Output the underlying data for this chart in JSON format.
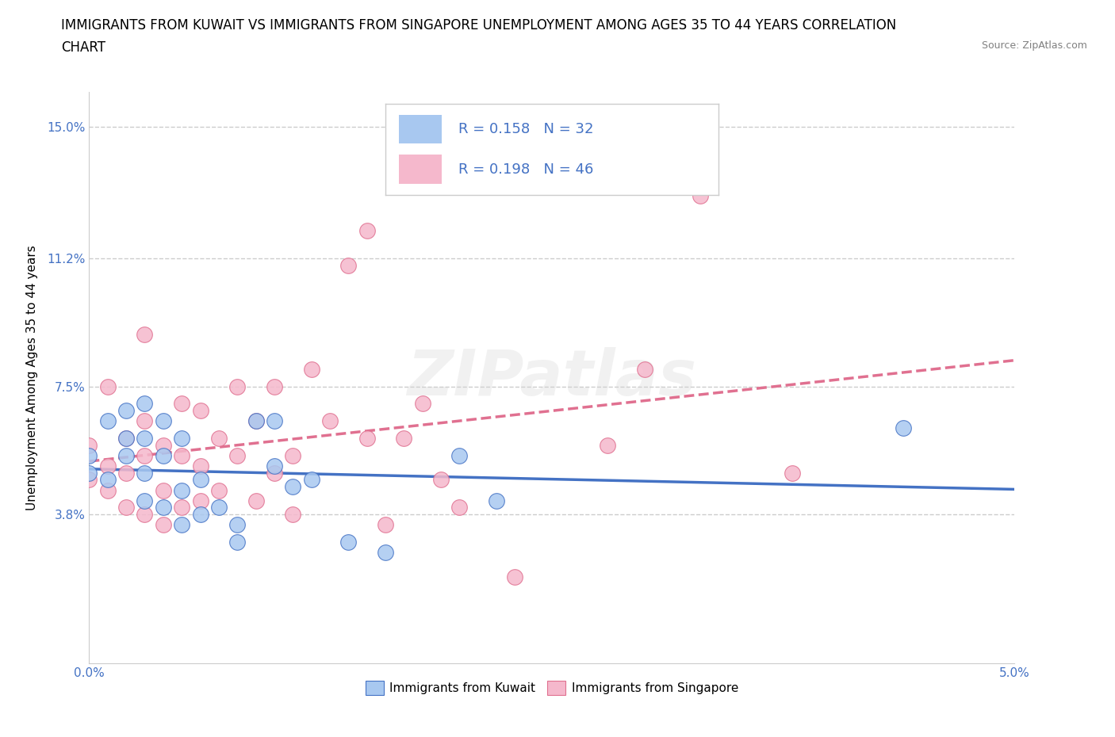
{
  "title_line1": "IMMIGRANTS FROM KUWAIT VS IMMIGRANTS FROM SINGAPORE UNEMPLOYMENT AMONG AGES 35 TO 44 YEARS CORRELATION",
  "title_line2": "CHART",
  "source": "Source: ZipAtlas.com",
  "ylabel": "Unemployment Among Ages 35 to 44 years",
  "xlim": [
    0.0,
    0.05
  ],
  "ylim": [
    -0.005,
    0.16
  ],
  "xticks": [
    0.0,
    0.01,
    0.02,
    0.03,
    0.04,
    0.05
  ],
  "xticklabels": [
    "0.0%",
    "",
    "",
    "",
    "",
    "5.0%"
  ],
  "yticks": [
    0.038,
    0.075,
    0.112,
    0.15
  ],
  "yticklabels": [
    "3.8%",
    "7.5%",
    "11.2%",
    "15.0%"
  ],
  "grid_yticks": [
    0.038,
    0.075,
    0.112,
    0.15
  ],
  "kuwait_color": "#A8C8F0",
  "singapore_color": "#F5B8CC",
  "kuwait_line_color": "#4472C4",
  "singapore_line_color": "#E07090",
  "legend_text_color": "#4472C4",
  "legend_R_kuwait": "R = 0.158",
  "legend_N_kuwait": "N = 32",
  "legend_R_singapore": "R = 0.198",
  "legend_N_singapore": "N = 46",
  "watermark": "ZIPatlas",
  "kuwait_scatter_x": [
    0.0,
    0.0,
    0.001,
    0.001,
    0.002,
    0.002,
    0.002,
    0.003,
    0.003,
    0.003,
    0.003,
    0.004,
    0.004,
    0.004,
    0.005,
    0.005,
    0.005,
    0.006,
    0.006,
    0.007,
    0.008,
    0.008,
    0.009,
    0.01,
    0.01,
    0.011,
    0.012,
    0.014,
    0.016,
    0.02,
    0.022,
    0.044
  ],
  "kuwait_scatter_y": [
    0.05,
    0.055,
    0.048,
    0.065,
    0.055,
    0.06,
    0.068,
    0.042,
    0.05,
    0.06,
    0.07,
    0.04,
    0.055,
    0.065,
    0.035,
    0.045,
    0.06,
    0.038,
    0.048,
    0.04,
    0.03,
    0.035,
    0.065,
    0.052,
    0.065,
    0.046,
    0.048,
    0.03,
    0.027,
    0.055,
    0.042,
    0.063
  ],
  "singapore_scatter_x": [
    0.0,
    0.0,
    0.001,
    0.001,
    0.001,
    0.002,
    0.002,
    0.002,
    0.003,
    0.003,
    0.003,
    0.003,
    0.004,
    0.004,
    0.004,
    0.005,
    0.005,
    0.005,
    0.006,
    0.006,
    0.006,
    0.007,
    0.007,
    0.008,
    0.008,
    0.009,
    0.009,
    0.01,
    0.01,
    0.011,
    0.011,
    0.012,
    0.013,
    0.014,
    0.015,
    0.015,
    0.016,
    0.017,
    0.018,
    0.019,
    0.02,
    0.023,
    0.028,
    0.03,
    0.033,
    0.038
  ],
  "singapore_scatter_y": [
    0.048,
    0.058,
    0.045,
    0.052,
    0.075,
    0.04,
    0.05,
    0.06,
    0.038,
    0.055,
    0.065,
    0.09,
    0.035,
    0.045,
    0.058,
    0.04,
    0.055,
    0.07,
    0.042,
    0.052,
    0.068,
    0.045,
    0.06,
    0.055,
    0.075,
    0.042,
    0.065,
    0.05,
    0.075,
    0.038,
    0.055,
    0.08,
    0.065,
    0.11,
    0.12,
    0.06,
    0.035,
    0.06,
    0.07,
    0.048,
    0.04,
    0.02,
    0.058,
    0.08,
    0.13,
    0.05
  ],
  "title_fontsize": 12,
  "axis_label_fontsize": 11,
  "tick_fontsize": 11,
  "tick_color": "#4472C4",
  "axis_color": "#CCCCCC",
  "dot_size": 200
}
